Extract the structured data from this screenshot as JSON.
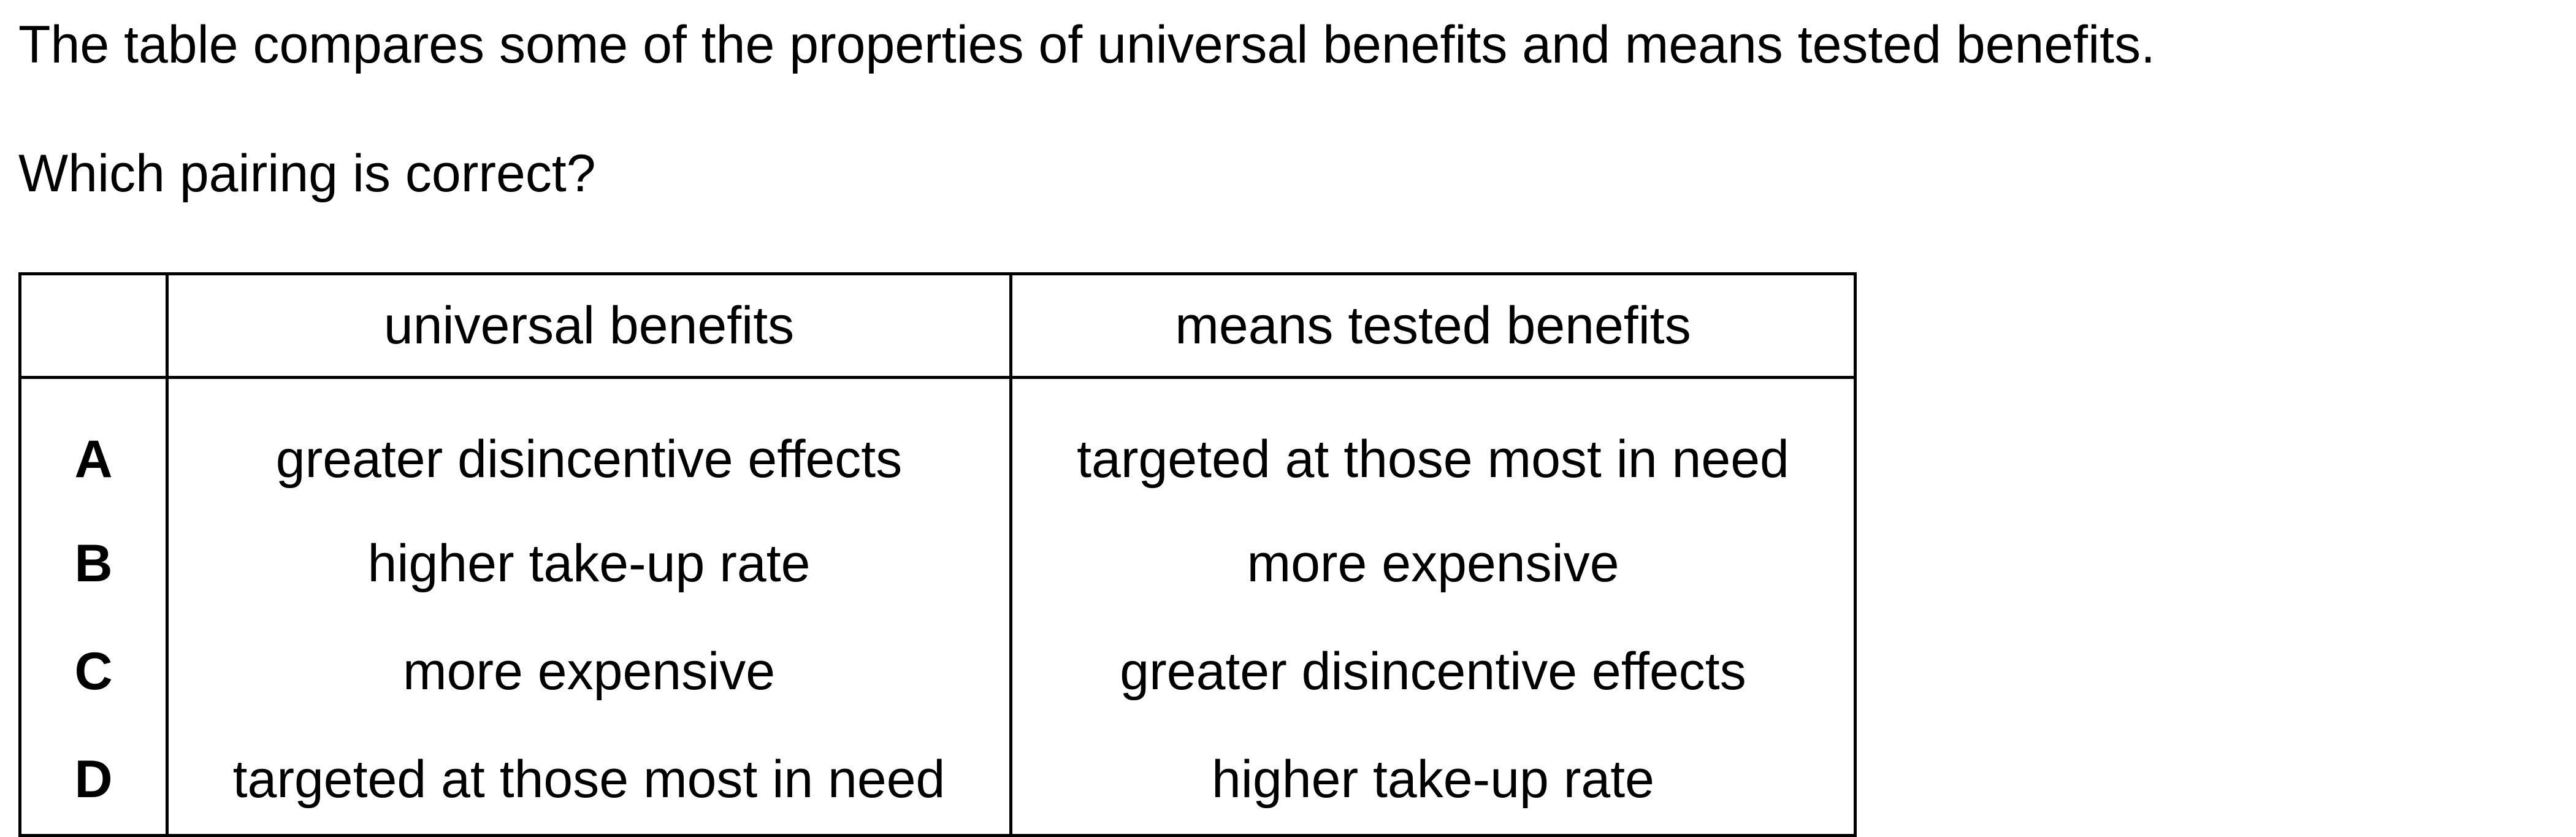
{
  "question": {
    "intro": "The table compares some of the properties of universal benefits and means tested benefits.",
    "prompt": "Which pairing is correct?"
  },
  "table": {
    "headers": [
      "",
      "universal benefits",
      "means tested benefits"
    ],
    "rows": [
      {
        "option": "A",
        "universal": "greater disincentive effects",
        "means_tested": "targeted at those most in need"
      },
      {
        "option": "B",
        "universal": "higher take-up rate",
        "means_tested": "more expensive"
      },
      {
        "option": "C",
        "universal": "more expensive",
        "means_tested": "greater disincentive effects"
      },
      {
        "option": "D",
        "universal": "targeted at those most in need",
        "means_tested": "higher take-up rate"
      }
    ]
  }
}
